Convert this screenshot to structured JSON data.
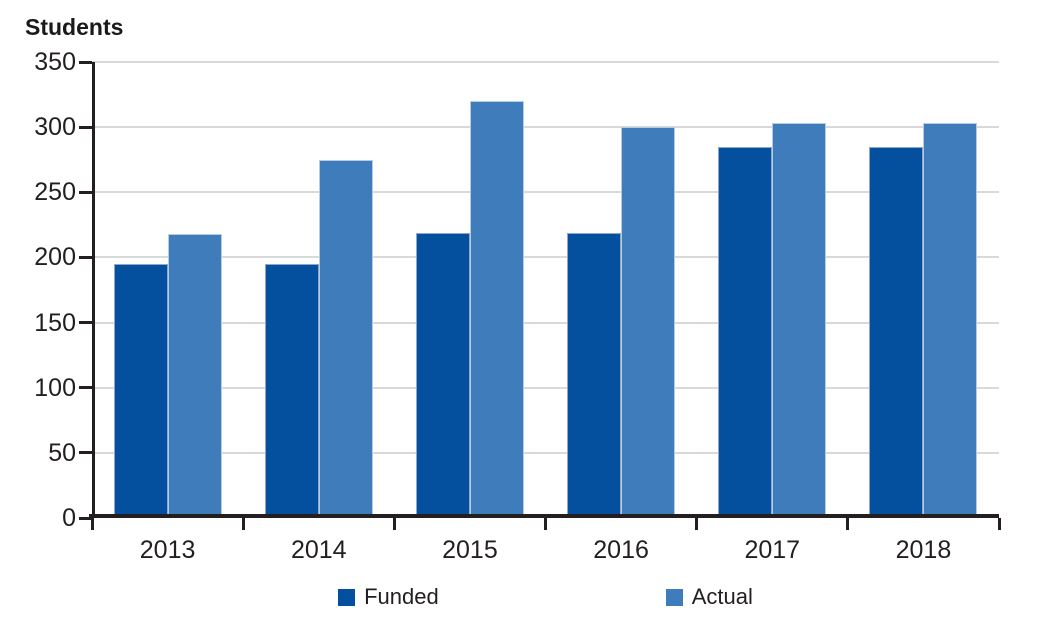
{
  "chart_data": {
    "type": "bar",
    "title": "Students",
    "categories": [
      "2013",
      "2014",
      "2015",
      "2016",
      "2017",
      "2018"
    ],
    "series": [
      {
        "name": "Funded",
        "color": "#04509E",
        "border_color": "#8FA8C9",
        "values": [
          195,
          195,
          219,
          219,
          285,
          285
        ]
      },
      {
        "name": "Actual",
        "color": "#3E7CBB",
        "border_color": "#B6CCE1",
        "values": [
          218,
          275,
          320,
          300,
          303,
          303
        ]
      }
    ],
    "xlabel": "",
    "ylabel": "Students",
    "ylim": [
      0,
      350
    ],
    "ytick_step": 50,
    "grid": "horizontal",
    "gridline_color": "#D9D9D9",
    "axis_color": "#231F20",
    "text_color": "#231F20",
    "legend_position": "bottom-center"
  }
}
